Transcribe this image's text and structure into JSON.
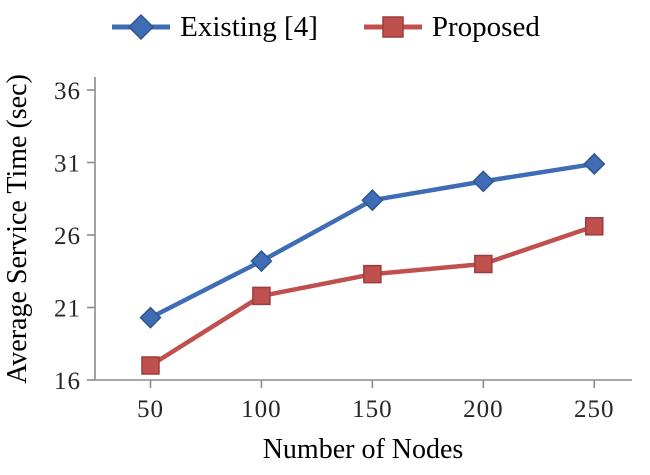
{
  "chart_data": {
    "type": "line",
    "title": "",
    "xlabel": "Number of Nodes",
    "ylabel": "Average Service Time (sec)",
    "x": [
      50,
      100,
      150,
      200,
      250
    ],
    "x_ticks": [
      "50",
      "100",
      "150",
      "200",
      "250"
    ],
    "y_ticks": [
      "16",
      "21",
      "26",
      "31",
      "36"
    ],
    "xlim": [
      25,
      267
    ],
    "ylim": [
      16,
      36
    ],
    "grid": false,
    "legend_position": "top",
    "axis_color": "#8C8C8C",
    "series": [
      {
        "name": "Existing [4]",
        "color": "#3E6DB5",
        "edge": "#2E5590",
        "marker": "diamond",
        "values": [
          20.3,
          24.2,
          28.4,
          29.7,
          30.9
        ]
      },
      {
        "name": "Proposed",
        "color": "#C0504D",
        "edge": "#9E3B38",
        "marker": "square",
        "values": [
          17.0,
          21.8,
          23.3,
          24.0,
          26.6
        ]
      }
    ]
  }
}
